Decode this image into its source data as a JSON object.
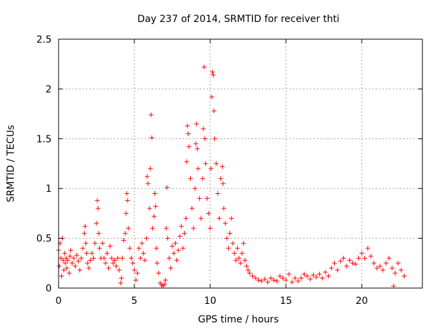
{
  "chart_data": {
    "type": "scatter",
    "title": "Day 237 of 2014, SRMTID for receiver thti",
    "xlabel": "GPS time / hours",
    "ylabel": "SRMTID / TECUs",
    "xlim": [
      0,
      24
    ],
    "ylim": [
      0,
      2.5
    ],
    "xticks": [
      0,
      5,
      10,
      15,
      20
    ],
    "yticks": [
      0,
      0.5,
      1,
      1.5,
      2,
      2.5
    ],
    "xtick_labels": [
      "0",
      "5",
      "10",
      "15",
      "20"
    ],
    "ytick_labels": [
      "0",
      "0.5",
      "1",
      "1.5",
      "2",
      "2.5"
    ],
    "grid": true,
    "marker": "+",
    "colors": {
      "points": "#ff0000",
      "grid": "#a0a0a0",
      "axes": "#000000"
    },
    "series": [
      {
        "name": "SRMTID",
        "points": [
          [
            0.0,
            0.38
          ],
          [
            0.05,
            0.22
          ],
          [
            0.1,
            0.45
          ],
          [
            0.15,
            0.3
          ],
          [
            0.2,
            0.12
          ],
          [
            0.25,
            0.5
          ],
          [
            0.3,
            0.28
          ],
          [
            0.35,
            0.18
          ],
          [
            0.4,
            0.35
          ],
          [
            0.45,
            0.25
          ],
          [
            0.5,
            0.3
          ],
          [
            0.55,
            0.2
          ],
          [
            0.6,
            0.28
          ],
          [
            0.7,
            0.15
          ],
          [
            0.75,
            0.32
          ],
          [
            0.8,
            0.38
          ],
          [
            0.9,
            0.25
          ],
          [
            1.0,
            0.3
          ],
          [
            1.1,
            0.22
          ],
          [
            1.2,
            0.33
          ],
          [
            1.3,
            0.27
          ],
          [
            1.4,
            0.18
          ],
          [
            1.5,
            0.3
          ],
          [
            1.6,
            0.4
          ],
          [
            1.7,
            0.55
          ],
          [
            1.75,
            0.62
          ],
          [
            1.8,
            0.45
          ],
          [
            1.85,
            0.35
          ],
          [
            1.9,
            0.25
          ],
          [
            2.0,
            0.2
          ],
          [
            2.1,
            0.28
          ],
          [
            2.2,
            0.35
          ],
          [
            2.3,
            0.3
          ],
          [
            2.4,
            0.45
          ],
          [
            2.5,
            0.65
          ],
          [
            2.55,
            0.88
          ],
          [
            2.6,
            0.8
          ],
          [
            2.65,
            0.55
          ],
          [
            2.7,
            0.4
          ],
          [
            2.8,
            0.3
          ],
          [
            2.9,
            0.45
          ],
          [
            3.0,
            0.3
          ],
          [
            3.1,
            0.25
          ],
          [
            3.2,
            0.35
          ],
          [
            3.3,
            0.2
          ],
          [
            3.4,
            0.42
          ],
          [
            3.5,
            0.3
          ],
          [
            3.6,
            0.25
          ],
          [
            3.7,
            0.28
          ],
          [
            3.8,
            0.22
          ],
          [
            3.9,
            0.3
          ],
          [
            4.0,
            0.18
          ],
          [
            4.1,
            0.05
          ],
          [
            4.15,
            0.1
          ],
          [
            4.2,
            0.3
          ],
          [
            4.3,
            0.48
          ],
          [
            4.4,
            0.55
          ],
          [
            4.45,
            0.75
          ],
          [
            4.5,
            0.95
          ],
          [
            4.55,
            0.88
          ],
          [
            4.6,
            0.6
          ],
          [
            4.7,
            0.4
          ],
          [
            4.8,
            0.3
          ],
          [
            4.9,
            0.25
          ],
          [
            5.0,
            0.18
          ],
          [
            5.1,
            0.08
          ],
          [
            5.2,
            0.15
          ],
          [
            5.3,
            0.4
          ],
          [
            5.4,
            0.3
          ],
          [
            5.5,
            0.45
          ],
          [
            5.6,
            0.35
          ],
          [
            5.7,
            0.28
          ],
          [
            5.8,
            0.5
          ],
          [
            5.85,
            1.12
          ],
          [
            5.9,
            1.05
          ],
          [
            6.0,
            0.8
          ],
          [
            6.05,
            1.2
          ],
          [
            6.1,
            1.74
          ],
          [
            6.15,
            1.51
          ],
          [
            6.2,
            0.6
          ],
          [
            6.3,
            0.72
          ],
          [
            6.35,
            0.95
          ],
          [
            6.4,
            0.82
          ],
          [
            6.45,
            0.4
          ],
          [
            6.5,
            0.25
          ],
          [
            6.6,
            0.15
          ],
          [
            6.7,
            0.05
          ],
          [
            6.8,
            0.03
          ],
          [
            6.9,
            0.02
          ],
          [
            7.0,
            0.04
          ],
          [
            7.05,
            0.08
          ],
          [
            7.1,
            0.6
          ],
          [
            7.15,
            1.01
          ],
          [
            7.2,
            0.5
          ],
          [
            7.3,
            0.3
          ],
          [
            7.4,
            0.2
          ],
          [
            7.5,
            0.42
          ],
          [
            7.6,
            0.35
          ],
          [
            7.7,
            0.45
          ],
          [
            7.8,
            0.28
          ],
          [
            7.9,
            0.38
          ],
          [
            8.0,
            0.52
          ],
          [
            8.1,
            0.62
          ],
          [
            8.2,
            0.4
          ],
          [
            8.3,
            0.55
          ],
          [
            8.4,
            0.7
          ],
          [
            8.45,
            1.27
          ],
          [
            8.5,
            1.63
          ],
          [
            8.55,
            1.55
          ],
          [
            8.6,
            1.42
          ],
          [
            8.7,
            1.1
          ],
          [
            8.8,
            0.8
          ],
          [
            8.9,
            0.6
          ],
          [
            9.0,
            1.0
          ],
          [
            9.05,
            1.45
          ],
          [
            9.1,
            1.65
          ],
          [
            9.15,
            1.4
          ],
          [
            9.2,
            1.2
          ],
          [
            9.3,
            0.9
          ],
          [
            9.4,
            0.7
          ],
          [
            9.5,
            1.1
          ],
          [
            9.55,
            1.6
          ],
          [
            9.6,
            2.22
          ],
          [
            9.65,
            1.5
          ],
          [
            9.7,
            1.25
          ],
          [
            9.8,
            0.9
          ],
          [
            9.9,
            0.75
          ],
          [
            10.0,
            0.6
          ],
          [
            10.05,
            1.2
          ],
          [
            10.1,
            1.92
          ],
          [
            10.15,
            2.17
          ],
          [
            10.2,
            2.14
          ],
          [
            10.25,
            1.78
          ],
          [
            10.3,
            1.5
          ],
          [
            10.4,
            1.25
          ],
          [
            10.5,
            0.95
          ],
          [
            10.6,
            0.7
          ],
          [
            10.7,
            1.1
          ],
          [
            10.8,
            1.22
          ],
          [
            10.85,
            1.05
          ],
          [
            10.9,
            0.8
          ],
          [
            11.0,
            0.65
          ],
          [
            11.1,
            0.5
          ],
          [
            11.2,
            0.4
          ],
          [
            11.3,
            0.55
          ],
          [
            11.4,
            0.7
          ],
          [
            11.5,
            0.45
          ],
          [
            11.6,
            0.35
          ],
          [
            11.7,
            0.28
          ],
          [
            11.8,
            0.4
          ],
          [
            11.9,
            0.3
          ],
          [
            12.0,
            0.25
          ],
          [
            12.1,
            0.35
          ],
          [
            12.2,
            0.45
          ],
          [
            12.3,
            0.28
          ],
          [
            12.4,
            0.22
          ],
          [
            12.5,
            0.18
          ],
          [
            12.6,
            0.15
          ],
          [
            12.8,
            0.12
          ],
          [
            13.0,
            0.1
          ],
          [
            13.2,
            0.08
          ],
          [
            13.4,
            0.07
          ],
          [
            13.6,
            0.09
          ],
          [
            13.8,
            0.06
          ],
          [
            14.0,
            0.1
          ],
          [
            14.2,
            0.08
          ],
          [
            14.4,
            0.07
          ],
          [
            14.6,
            0.12
          ],
          [
            14.8,
            0.1
          ],
          [
            15.0,
            0.08
          ],
          [
            15.2,
            0.14
          ],
          [
            15.4,
            0.06
          ],
          [
            15.6,
            0.1
          ],
          [
            15.8,
            0.07
          ],
          [
            16.0,
            0.1
          ],
          [
            16.2,
            0.14
          ],
          [
            16.4,
            0.12
          ],
          [
            16.6,
            0.09
          ],
          [
            16.8,
            0.13
          ],
          [
            17.0,
            0.11
          ],
          [
            17.2,
            0.14
          ],
          [
            17.4,
            0.1
          ],
          [
            17.6,
            0.16
          ],
          [
            17.8,
            0.12
          ],
          [
            18.0,
            0.2
          ],
          [
            18.2,
            0.25
          ],
          [
            18.4,
            0.18
          ],
          [
            18.6,
            0.27
          ],
          [
            18.8,
            0.3
          ],
          [
            19.0,
            0.22
          ],
          [
            19.2,
            0.28
          ],
          [
            19.4,
            0.25
          ],
          [
            19.6,
            0.24
          ],
          [
            19.8,
            0.3
          ],
          [
            20.0,
            0.35
          ],
          [
            20.2,
            0.3
          ],
          [
            20.4,
            0.4
          ],
          [
            20.6,
            0.32
          ],
          [
            20.8,
            0.25
          ],
          [
            21.0,
            0.2
          ],
          [
            21.2,
            0.22
          ],
          [
            21.4,
            0.18
          ],
          [
            21.6,
            0.25
          ],
          [
            21.8,
            0.3
          ],
          [
            22.0,
            0.2
          ],
          [
            22.1,
            0.02
          ],
          [
            22.2,
            0.15
          ],
          [
            22.4,
            0.25
          ],
          [
            22.6,
            0.18
          ],
          [
            22.8,
            0.12
          ]
        ]
      }
    ]
  }
}
